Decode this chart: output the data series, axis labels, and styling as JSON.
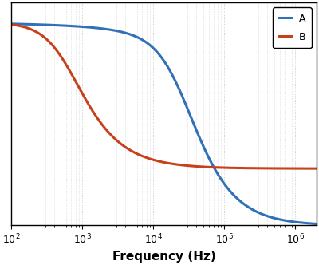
{
  "xlabel": "Frequency (Hz)",
  "xlim": [
    100,
    2000000
  ],
  "ylim": [
    0.0,
    1.1
  ],
  "line_A_color": "#3070b8",
  "line_B_color": "#c8401a",
  "line_A_label": "A",
  "line_B_label": "B",
  "legend_loc": "upper right",
  "grid_color": "#c0c0c0",
  "background_color": "#ffffff",
  "fig_size": [
    4.0,
    3.32
  ],
  "dpi": 100,
  "xlabel_fontsize": 11,
  "tick_fontsize": 9,
  "f_p_A": 25000,
  "f_p_A2": 600000,
  "f_p_B1": 600,
  "A_floor_B": 0.28,
  "gain_A_dc": 1.0,
  "gain_B_dc": 1.0
}
